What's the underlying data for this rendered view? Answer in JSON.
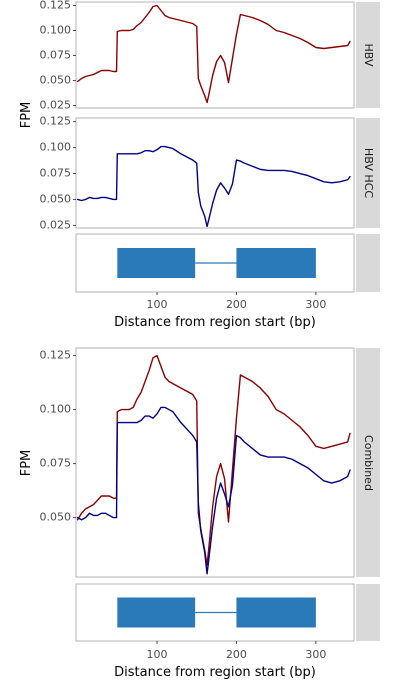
{
  "colors": {
    "hbv": "#8b0000",
    "hbv_hcc": "#00008b",
    "exon": "#2a7ab9",
    "intron": "#2a7ab9",
    "strip": "#d9d9d9",
    "panel_border": "#b3b3b3",
    "tick": "#4d4d4d"
  },
  "top_figure": {
    "ylabel": "FPM",
    "xlabel": "Distance from region start (bp)"
  },
  "bottom_figure": {
    "ylabel": "FPM",
    "xlabel": "Distance from region start (bp)"
  },
  "chart_data": [
    {
      "type": "line",
      "id": "top-hbv",
      "strip_label": "HBV",
      "xlim": [
        -2,
        348
      ],
      "ylim": [
        0.0225,
        0.1285
      ],
      "yticks": [
        0.025,
        0.05,
        0.075,
        0.1,
        0.125
      ],
      "ytick_labels": [
        "0.025",
        "0.050",
        "0.075",
        "0.100",
        "0.125"
      ],
      "xticks": [],
      "series": [
        {
          "color_key": "hbv",
          "x": [
            0,
            5,
            10,
            15,
            20,
            25,
            30,
            35,
            40,
            45,
            49,
            50,
            55,
            60,
            65,
            70,
            75,
            80,
            85,
            90,
            95,
            100,
            105,
            110,
            115,
            120,
            130,
            140,
            145,
            150,
            152,
            155,
            160,
            163,
            165,
            170,
            175,
            180,
            185,
            190,
            195,
            200,
            205,
            210,
            220,
            230,
            240,
            250,
            260,
            270,
            280,
            290,
            300,
            310,
            320,
            330,
            340,
            343
          ],
          "y": [
            0.049,
            0.052,
            0.054,
            0.055,
            0.056,
            0.058,
            0.06,
            0.06,
            0.06,
            0.059,
            0.059,
            0.099,
            0.1,
            0.1,
            0.1,
            0.101,
            0.105,
            0.108,
            0.113,
            0.118,
            0.124,
            0.125,
            0.12,
            0.115,
            0.113,
            0.112,
            0.11,
            0.108,
            0.107,
            0.104,
            0.052,
            0.045,
            0.035,
            0.028,
            0.035,
            0.055,
            0.069,
            0.075,
            0.068,
            0.048,
            0.072,
            0.096,
            0.116,
            0.115,
            0.113,
            0.11,
            0.106,
            0.1,
            0.098,
            0.095,
            0.092,
            0.088,
            0.083,
            0.082,
            0.083,
            0.084,
            0.085,
            0.089
          ]
        }
      ]
    },
    {
      "type": "line",
      "id": "top-hcc",
      "strip_label": "HBV HCC",
      "xlim": [
        -2,
        348
      ],
      "ylim": [
        0.0225,
        0.1285
      ],
      "yticks": [
        0.025,
        0.05,
        0.075,
        0.1,
        0.125
      ],
      "ytick_labels": [
        "0.025",
        "0.050",
        "0.075",
        "0.100",
        "0.125"
      ],
      "xticks": [],
      "series": [
        {
          "color_key": "hbv_hcc",
          "x": [
            0,
            5,
            10,
            15,
            20,
            25,
            30,
            35,
            40,
            45,
            49,
            50,
            55,
            60,
            65,
            70,
            75,
            80,
            85,
            90,
            95,
            100,
            105,
            110,
            115,
            120,
            130,
            140,
            145,
            150,
            152,
            155,
            160,
            163,
            165,
            170,
            175,
            180,
            185,
            190,
            195,
            200,
            205,
            210,
            220,
            230,
            240,
            250,
            260,
            270,
            280,
            290,
            300,
            310,
            320,
            330,
            340,
            343
          ],
          "y": [
            0.05,
            0.049,
            0.05,
            0.052,
            0.051,
            0.051,
            0.052,
            0.052,
            0.051,
            0.05,
            0.05,
            0.094,
            0.094,
            0.094,
            0.094,
            0.094,
            0.094,
            0.095,
            0.097,
            0.097,
            0.096,
            0.098,
            0.101,
            0.101,
            0.1,
            0.099,
            0.094,
            0.09,
            0.088,
            0.085,
            0.057,
            0.044,
            0.034,
            0.024,
            0.03,
            0.046,
            0.059,
            0.066,
            0.061,
            0.055,
            0.065,
            0.088,
            0.087,
            0.085,
            0.082,
            0.079,
            0.078,
            0.078,
            0.078,
            0.077,
            0.075,
            0.073,
            0.07,
            0.067,
            0.066,
            0.067,
            0.069,
            0.072
          ]
        }
      ]
    },
    {
      "type": "gene-track",
      "id": "top-track",
      "xlim": [
        -2,
        348
      ],
      "xticks": [
        100,
        200,
        300
      ],
      "xtick_labels": [
        "100",
        "200",
        "300"
      ],
      "exons": [
        [
          50,
          148
        ],
        [
          200,
          300
        ]
      ],
      "intron": [
        148,
        200
      ]
    },
    {
      "type": "line",
      "id": "bottom-combined",
      "strip_label": "Combined",
      "xlim": [
        -2,
        348
      ],
      "ylim": [
        0.0225,
        0.1285
      ],
      "yticks": [
        0.05,
        0.075,
        0.1,
        0.125
      ],
      "ytick_labels": [
        "0.050",
        "0.075",
        "0.100",
        "0.125"
      ],
      "xticks": [],
      "series": [
        {
          "color_key": "hbv",
          "x": [
            0,
            5,
            10,
            15,
            20,
            25,
            30,
            35,
            40,
            45,
            49,
            50,
            55,
            60,
            65,
            70,
            75,
            80,
            85,
            90,
            95,
            100,
            105,
            110,
            115,
            120,
            130,
            140,
            145,
            150,
            152,
            155,
            160,
            163,
            165,
            170,
            175,
            180,
            185,
            190,
            195,
            200,
            205,
            210,
            220,
            230,
            240,
            250,
            260,
            270,
            280,
            290,
            300,
            310,
            320,
            330,
            340,
            343
          ],
          "y": [
            0.049,
            0.052,
            0.054,
            0.055,
            0.056,
            0.058,
            0.06,
            0.06,
            0.06,
            0.059,
            0.059,
            0.099,
            0.1,
            0.1,
            0.1,
            0.101,
            0.105,
            0.108,
            0.113,
            0.118,
            0.124,
            0.125,
            0.12,
            0.115,
            0.113,
            0.112,
            0.11,
            0.108,
            0.107,
            0.104,
            0.052,
            0.045,
            0.035,
            0.028,
            0.035,
            0.055,
            0.069,
            0.075,
            0.068,
            0.048,
            0.072,
            0.096,
            0.116,
            0.115,
            0.113,
            0.11,
            0.106,
            0.1,
            0.098,
            0.095,
            0.092,
            0.088,
            0.083,
            0.082,
            0.083,
            0.084,
            0.085,
            0.089
          ]
        },
        {
          "color_key": "hbv_hcc",
          "x": [
            0,
            5,
            10,
            15,
            20,
            25,
            30,
            35,
            40,
            45,
            49,
            50,
            55,
            60,
            65,
            70,
            75,
            80,
            85,
            90,
            95,
            100,
            105,
            110,
            115,
            120,
            130,
            140,
            145,
            150,
            152,
            155,
            160,
            163,
            165,
            170,
            175,
            180,
            185,
            190,
            195,
            200,
            205,
            210,
            220,
            230,
            240,
            250,
            260,
            270,
            280,
            290,
            300,
            310,
            320,
            330,
            340,
            343
          ],
          "y": [
            0.05,
            0.049,
            0.05,
            0.052,
            0.051,
            0.051,
            0.052,
            0.052,
            0.051,
            0.05,
            0.05,
            0.094,
            0.094,
            0.094,
            0.094,
            0.094,
            0.094,
            0.095,
            0.097,
            0.097,
            0.096,
            0.098,
            0.101,
            0.101,
            0.1,
            0.099,
            0.094,
            0.09,
            0.088,
            0.085,
            0.057,
            0.044,
            0.034,
            0.024,
            0.03,
            0.046,
            0.059,
            0.066,
            0.061,
            0.055,
            0.065,
            0.088,
            0.087,
            0.085,
            0.082,
            0.079,
            0.078,
            0.078,
            0.078,
            0.077,
            0.075,
            0.073,
            0.07,
            0.067,
            0.066,
            0.067,
            0.069,
            0.072
          ]
        }
      ]
    },
    {
      "type": "gene-track",
      "id": "bottom-track",
      "xlim": [
        -2,
        348
      ],
      "xticks": [
        100,
        200,
        300
      ],
      "xtick_labels": [
        "100",
        "200",
        "300"
      ],
      "exons": [
        [
          50,
          148
        ],
        [
          200,
          300
        ]
      ],
      "intron": [
        148,
        200
      ]
    }
  ]
}
